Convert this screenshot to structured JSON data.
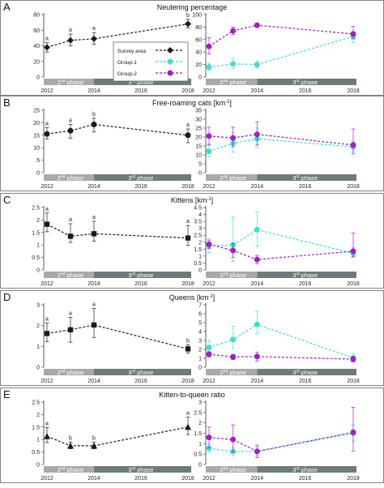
{
  "years": [
    2012,
    2013,
    2014,
    2018
  ],
  "x_ticks": [
    "2012",
    "2014",
    "2016",
    "2018"
  ],
  "phase_labels": {
    "phase2_num": "2",
    "phase3_num": "3",
    "sup": "rd",
    "sup2": "nd",
    "word": "phase"
  },
  "legend": {
    "survey": "Survey area",
    "group1": "Group-1",
    "group2": "Group-2"
  },
  "colors": {
    "survey": "#1a1a1a",
    "group1": "#40e0c8",
    "group2": "#a020c0",
    "phase2_bar": "#a9a9a9",
    "phase3_bar": "#6e7b7b"
  },
  "chart_data": [
    {
      "type": "line",
      "panel_letter": "A",
      "title": "Neutering percentage",
      "marker": "diamond",
      "left": {
        "ylim": [
          0,
          80
        ],
        "yticks": [
          "0",
          "20",
          "40",
          "60",
          "80"
        ],
        "series": [
          {
            "name": "Survey area",
            "x": [
              2012,
              2013,
              2014,
              2018
            ],
            "y": [
              38,
              47,
              49,
              68
            ],
            "err": [
              [
                6,
                6
              ],
              [
                7,
                8
              ],
              [
                7,
                8
              ],
              [
                5,
                6
              ]
            ],
            "sig": [
              "a",
              "a",
              "a",
              "b"
            ]
          }
        ]
      },
      "right": {
        "ylim": [
          0,
          100
        ],
        "yticks": [
          "0",
          "20",
          "40",
          "60",
          "80",
          "100"
        ],
        "series": [
          {
            "name": "Group-1",
            "x": [
              2012,
              2013,
              2014,
              2018
            ],
            "y": [
              16,
              21,
              20,
              65
            ],
            "err": [
              [
                5,
                6
              ],
              [
                7,
                9
              ],
              [
                5,
                6
              ],
              [
                10,
                8
              ]
            ]
          },
          {
            "name": "Group-2",
            "x": [
              2012,
              2013,
              2014,
              2018
            ],
            "y": [
              49,
              74,
              83,
              69
            ],
            "err": [
              [
                12,
                14
              ],
              [
                6,
                6
              ],
              [
                1,
                1
              ],
              [
                8,
                12
              ]
            ]
          }
        ]
      }
    },
    {
      "type": "line",
      "panel_letter": "B",
      "title": "Free-roaming cats [km",
      "title_sup": "-1",
      "title_end": "]",
      "marker": "circle",
      "left": {
        "ylim": [
          0,
          25
        ],
        "yticks": [
          "0",
          "5",
          "10",
          "15",
          "20",
          "25"
        ],
        "series": [
          {
            "name": "Survey area",
            "x": [
              2012,
              2013,
              2014,
              2018
            ],
            "y": [
              15.5,
              16.8,
              19.3,
              15.0
            ],
            "err": [
              [
                2,
                2.5
              ],
              [
                3,
                2.5
              ],
              [
                3,
                2.5
              ],
              [
                3,
                2.5
              ]
            ],
            "sig": [
              "a",
              "a",
              "b",
              "a"
            ]
          }
        ]
      },
      "right": {
        "ylim": [
          0,
          35
        ],
        "yticks": [
          "0",
          "5",
          "10",
          "15",
          "20",
          "25",
          "30",
          "35"
        ],
        "series": [
          {
            "name": "Group-1",
            "x": [
              2012,
              2013,
              2014,
              2018
            ],
            "y": [
              12,
              16.5,
              19,
              14.5
            ],
            "err": [
              [
                3,
                4
              ],
              [
                5,
                6
              ],
              [
                5,
                6
              ],
              [
                3,
                3
              ]
            ]
          },
          {
            "name": "Group-2",
            "x": [
              2012,
              2013,
              2014,
              2018
            ],
            "y": [
              20.5,
              19.5,
              21.5,
              15.5
            ],
            "err": [
              [
                5,
                5
              ],
              [
                5,
                6
              ],
              [
                6,
                7
              ],
              [
                5,
                9
              ]
            ]
          }
        ]
      }
    },
    {
      "type": "line",
      "panel_letter": "C",
      "title": "Kittens [km",
      "title_sup": "-1",
      "title_end": "]",
      "marker": "square",
      "left": {
        "ylim": [
          0,
          2.5
        ],
        "yticks": [
          "0",
          "0.5",
          "1",
          "1.5",
          "2",
          "2.5"
        ],
        "series": [
          {
            "name": "Survey area",
            "x": [
              2012,
              2013,
              2014,
              2018
            ],
            "y": [
              1.83,
              1.35,
              1.45,
              1.28
            ],
            "err": [
              [
                0.3,
                0.45
              ],
              [
                0.25,
                0.5
              ],
              [
                0.3,
                0.5
              ],
              [
                0.3,
                0.5
              ]
            ],
            "sig": [
              "a",
              "a",
              "a",
              "a"
            ]
          }
        ]
      },
      "right": {
        "ylim": [
          0,
          4.5
        ],
        "yticks": [
          "0",
          "0.5",
          "1",
          "1.5",
          "2",
          "2.5",
          "3",
          "3.5",
          "4",
          "4.5"
        ],
        "series": [
          {
            "name": "Group-1",
            "x": [
              2012,
              2013,
              2014,
              2018
            ],
            "y": [
              1.75,
              1.8,
              2.9,
              1.2
            ],
            "err": [
              [
                0.5,
                0.5
              ],
              [
                1.2,
                2.0
              ],
              [
                1.2,
                1.3
              ],
              [
                0.3,
                0.4
              ]
            ]
          },
          {
            "name": "Group-2",
            "x": [
              2012,
              2013,
              2014,
              2018
            ],
            "y": [
              1.85,
              1.4,
              0.75,
              1.35
            ],
            "err": [
              [
                0.3,
                0.3
              ],
              [
                0.5,
                0.5
              ],
              [
                0.3,
                0.3
              ],
              [
                0.4,
                1.3
              ]
            ]
          }
        ]
      }
    },
    {
      "type": "line",
      "panel_letter": "D",
      "title": "Queens [km",
      "title_sup": "-1",
      "title_end": "]",
      "marker": "square",
      "left": {
        "ylim": [
          0,
          3
        ],
        "yticks": [
          "0",
          "1",
          "2",
          "3"
        ],
        "series": [
          {
            "name": "Survey area",
            "x": [
              2012,
              2013,
              2014,
              2018
            ],
            "y": [
              1.62,
              1.8,
              2.03,
              0.88
            ],
            "err": [
              [
                0.4,
                0.5
              ],
              [
                0.6,
                0.6
              ],
              [
                0.6,
                0.8
              ],
              [
                0.2,
                0.2
              ]
            ],
            "sig": [
              "a",
              "a",
              "a",
              "b"
            ]
          }
        ]
      },
      "right": {
        "ylim": [
          0,
          7
        ],
        "yticks": [
          "0",
          "1",
          "2",
          "3",
          "4",
          "5",
          "6",
          "7"
        ],
        "series": [
          {
            "name": "Group-1",
            "x": [
              2012,
              2013,
              2014,
              2018
            ],
            "y": [
              2.2,
              3.1,
              4.8,
              1.05
            ],
            "err": [
              [
                0.6,
                0.8
              ],
              [
                1.0,
                1.5
              ],
              [
                1.0,
                1.5
              ],
              [
                0.4,
                0.5
              ]
            ]
          },
          {
            "name": "Group-2",
            "x": [
              2012,
              2013,
              2014,
              2018
            ],
            "y": [
              1.45,
              1.15,
              1.2,
              0.9
            ],
            "err": [
              [
                0.3,
                0.3
              ],
              [
                0.3,
                0.3
              ],
              [
                0.5,
                0.5
              ],
              [
                0.3,
                0.3
              ]
            ]
          }
        ]
      }
    },
    {
      "type": "line",
      "panel_letter": "E",
      "title": "Kitten-to-queen ratio",
      "marker": "triangle",
      "left": {
        "ylim": [
          0,
          2.5
        ],
        "yticks": [
          "0",
          "0.5",
          "1",
          "1.5",
          "2",
          "2.5"
        ],
        "series": [
          {
            "name": "Survey area",
            "x": [
              2012,
              2013,
              2014,
              2018
            ],
            "y": [
              1.13,
              0.75,
              0.75,
              1.5
            ],
            "err": [
              [
                0.25,
                0.35
              ],
              [
                0.12,
                0.15
              ],
              [
                0.12,
                0.15
              ],
              [
                0.3,
                0.4
              ]
            ],
            "sig": [
              "a",
              "b",
              "b",
              "a"
            ]
          }
        ]
      },
      "right": {
        "ylim": [
          0,
          3
        ],
        "yticks": [
          "0",
          "0.5",
          "1",
          "1.5",
          "2",
          "2.5",
          "3"
        ],
        "series": [
          {
            "name": "Group-1",
            "x": [
              2012,
              2013,
              2014,
              2018
            ],
            "y": [
              0.78,
              0.62,
              0.63,
              1.5
            ],
            "err": [
              [
                0.2,
                0.2
              ],
              [
                0.2,
                0.2
              ],
              [
                0.2,
                0.2
              ],
              [
                0.4,
                0.4
              ]
            ]
          },
          {
            "name": "Group-2",
            "x": [
              2012,
              2013,
              2014,
              2018
            ],
            "y": [
              1.3,
              1.2,
              0.63,
              1.55
            ],
            "err": [
              [
                0.5,
                0.5
              ],
              [
                0.6,
                0.7
              ],
              [
                0.3,
                0.3
              ],
              [
                0.9,
                1.2
              ]
            ]
          }
        ]
      }
    }
  ]
}
